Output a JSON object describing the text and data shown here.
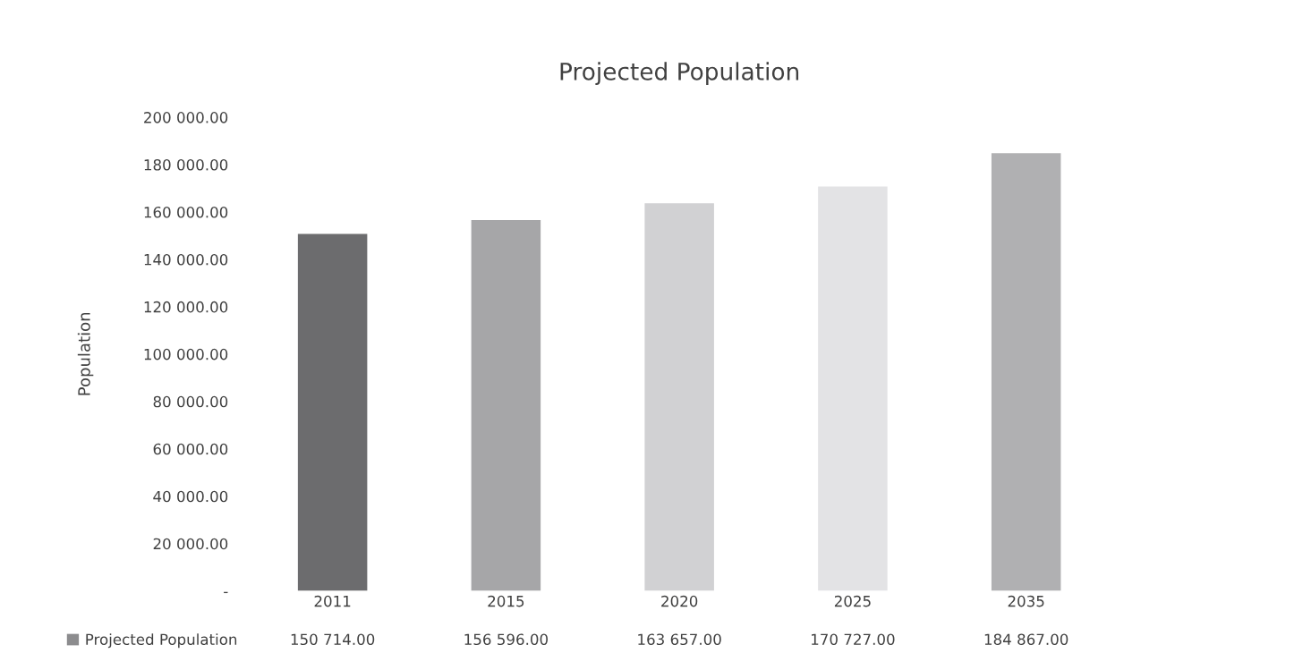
{
  "chart_data": {
    "type": "bar",
    "title": "Projected Population",
    "ylabel": "Population",
    "categories": [
      "2011",
      "2015",
      "2020",
      "2025",
      "2035"
    ],
    "series": [
      {
        "name": "Projected Population",
        "color": "#8c8c8e",
        "colors": [
          "#6c6c6e",
          "#a6a6a8",
          "#d1d1d3",
          "#e3e3e5",
          "#b0b0b2"
        ],
        "values": [
          150714,
          156596,
          163657,
          170727,
          184867
        ],
        "value_labels": [
          "150 714.00",
          "156 596.00",
          "163 657.00",
          "170 727.00",
          "184 867.00"
        ]
      }
    ],
    "ylim": [
      0,
      200000
    ],
    "yticks": [
      {
        "value": 0,
        "label": "-"
      },
      {
        "value": 20000,
        "label": "20 000.00"
      },
      {
        "value": 40000,
        "label": "40 000.00"
      },
      {
        "value": 60000,
        "label": "60 000.00"
      },
      {
        "value": 80000,
        "label": "80 000.00"
      },
      {
        "value": 100000,
        "label": "100 000.00"
      },
      {
        "value": 120000,
        "label": "120 000.00"
      },
      {
        "value": 140000,
        "label": "140 000.00"
      },
      {
        "value": 160000,
        "label": "160 000.00"
      },
      {
        "value": 180000,
        "label": "180 000.00"
      },
      {
        "value": 200000,
        "label": "200 000.00"
      }
    ],
    "grid": false,
    "legend": "bottom"
  }
}
